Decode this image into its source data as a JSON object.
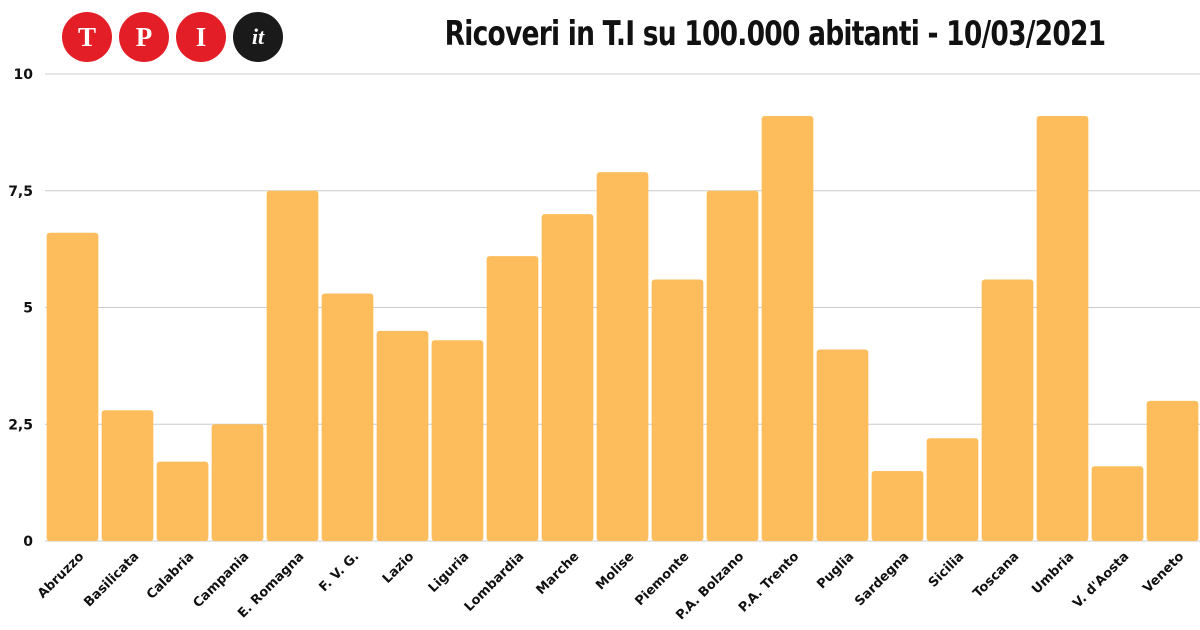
{
  "logo": {
    "letters": [
      "T",
      "P",
      "I",
      "it"
    ],
    "colors": {
      "brand_red": "#e41e26",
      "brand_dark": "#1a1a1a"
    }
  },
  "chart_data": {
    "type": "bar",
    "title": "Ricoveri in T.I su 100.000 abitanti - 10/03/2021",
    "xlabel": "",
    "ylabel": "",
    "ylim": [
      0,
      10
    ],
    "yticks": [
      0,
      2.5,
      5,
      7.5,
      10
    ],
    "ytick_labels": [
      "0",
      "2,5",
      "5",
      "7,5",
      "10"
    ],
    "grid": true,
    "bar_color": "#fdbd5c",
    "categories": [
      "Abruzzo",
      "Basilicata",
      "Calabria",
      "Campania",
      "E. Romagna",
      "F. V. G.",
      "Lazio",
      "Liguria",
      "Lombardia",
      "Marche",
      "Molise",
      "Piemonte",
      "P.A. Bolzano",
      "P.A. Trento",
      "Puglia",
      "Sardegna",
      "Sicilia",
      "Toscana",
      "Umbria",
      "V. d'Aosta",
      "Veneto"
    ],
    "values": [
      6.6,
      2.8,
      1.7,
      2.5,
      7.5,
      5.3,
      4.5,
      4.3,
      6.1,
      7.0,
      7.9,
      5.6,
      7.5,
      9.1,
      4.1,
      1.5,
      2.2,
      5.6,
      9.1,
      1.6,
      3.0
    ]
  }
}
